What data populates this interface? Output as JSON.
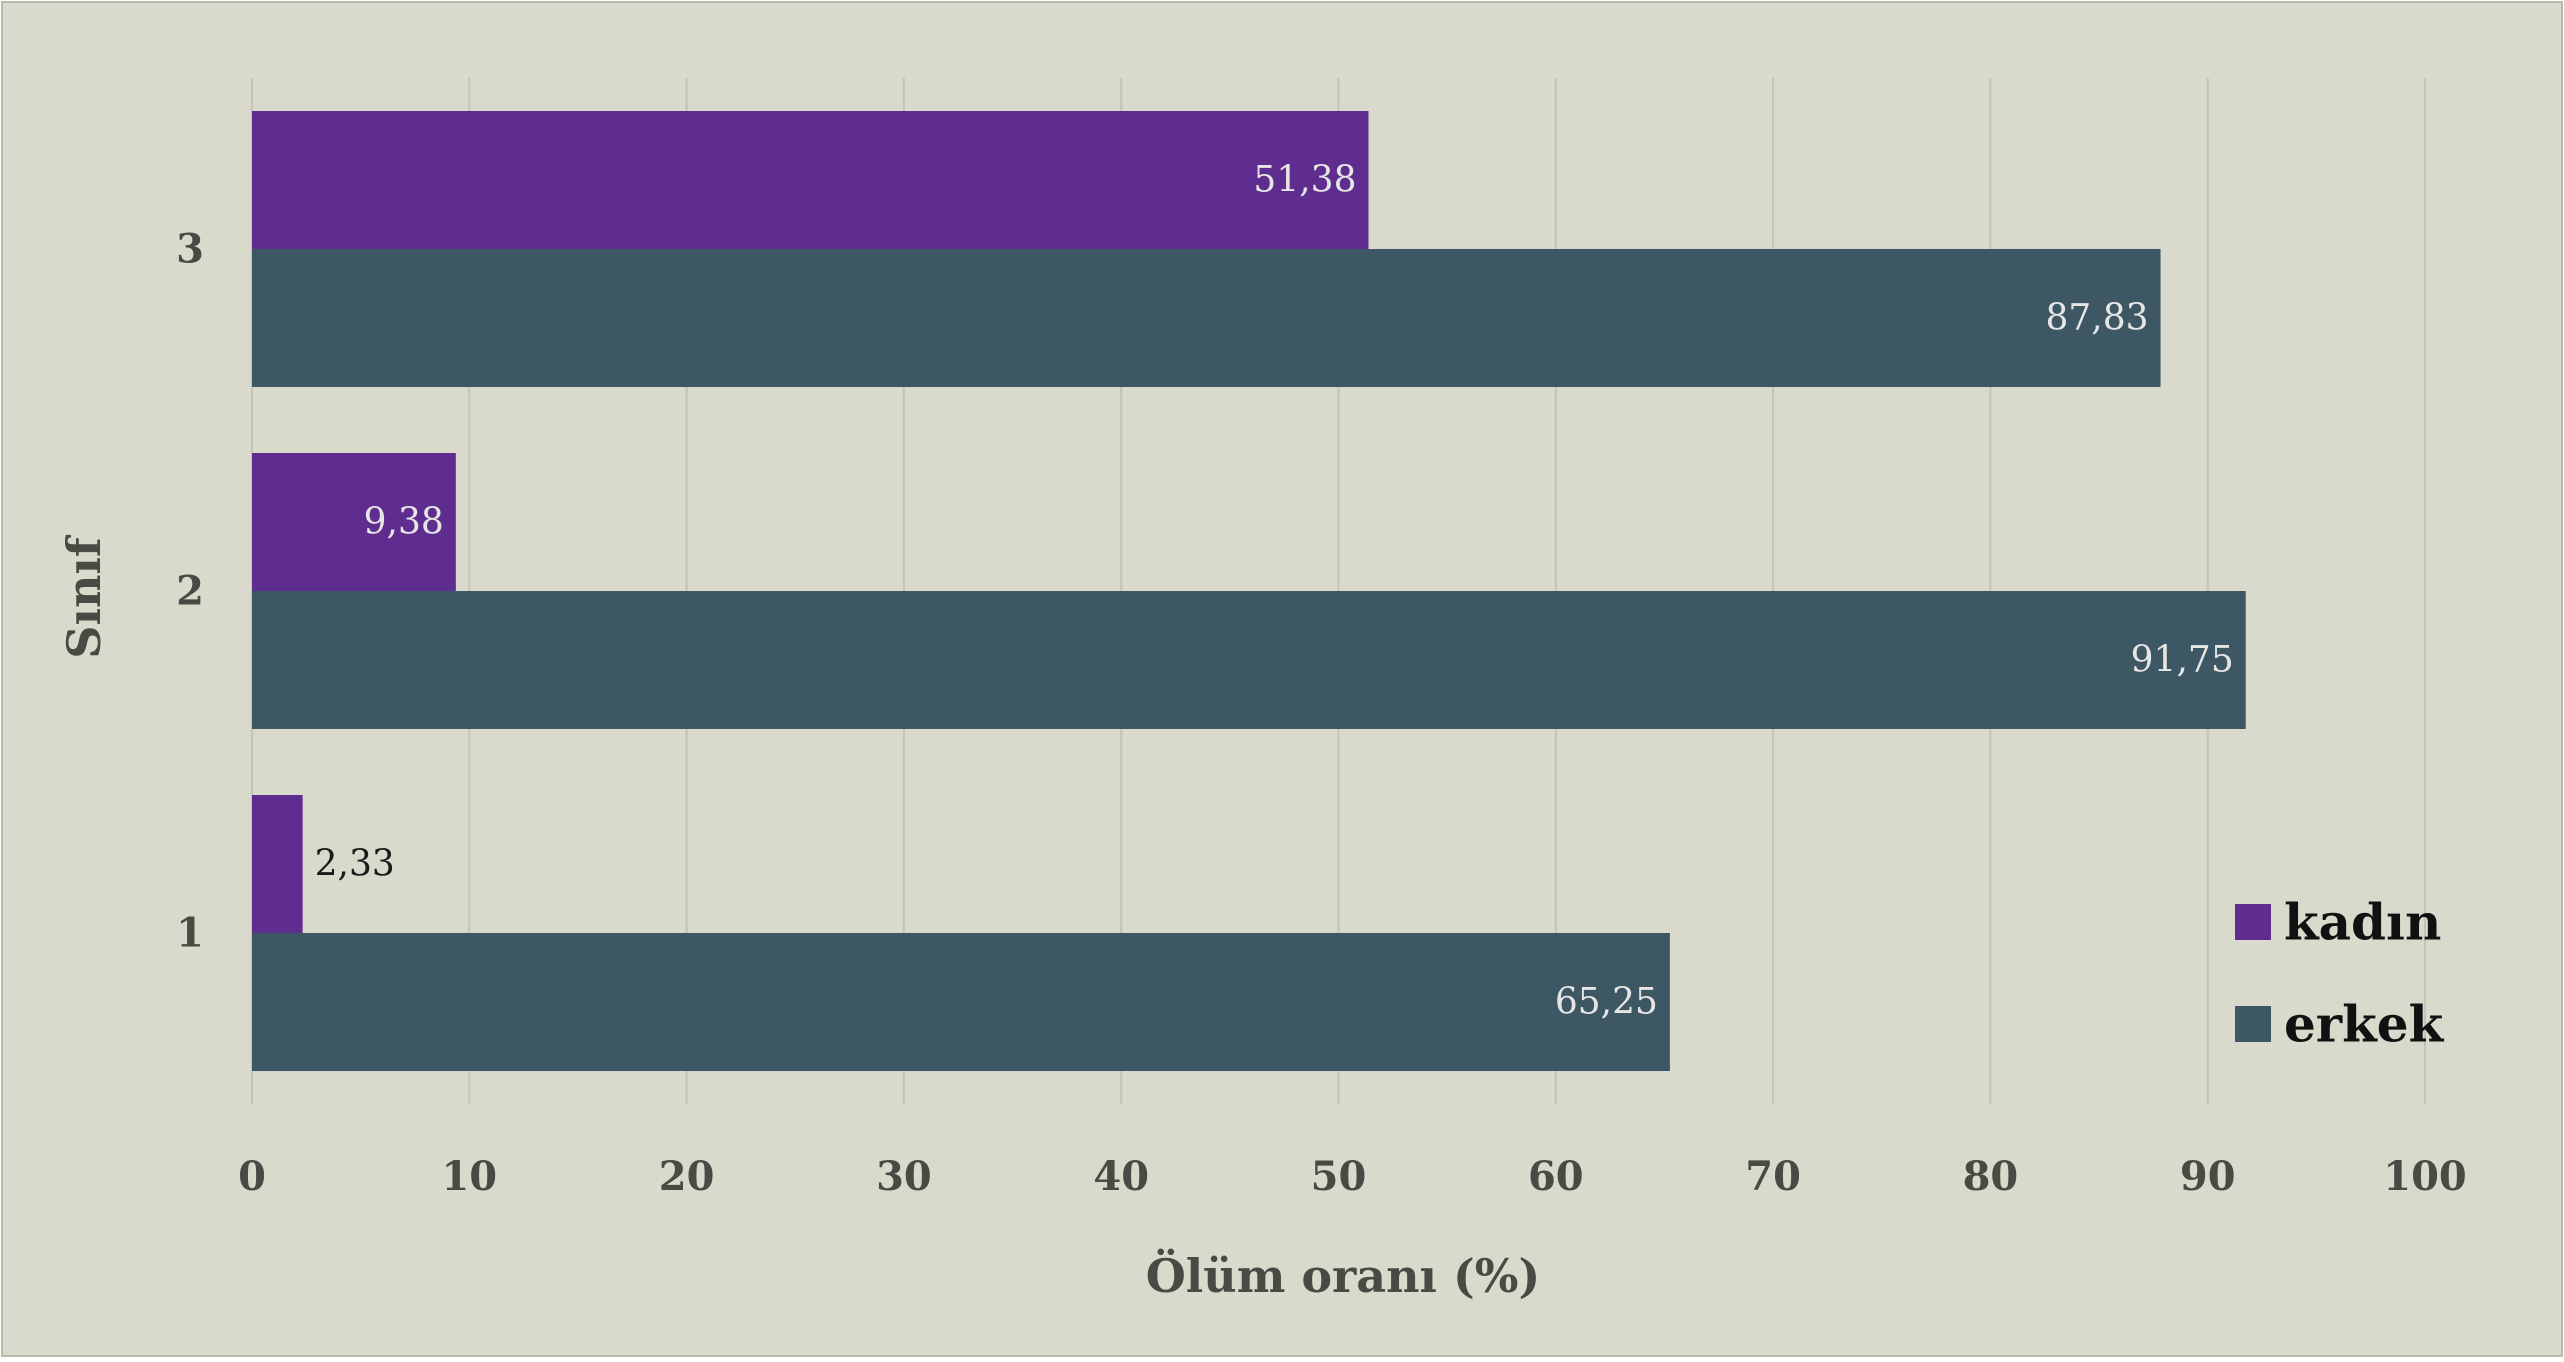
{
  "chart_data": {
    "type": "bar",
    "orientation": "horizontal",
    "categories": [
      "1",
      "2",
      "3"
    ],
    "series": [
      {
        "name": "kadın",
        "values": [
          2.33,
          9.38,
          51.38
        ],
        "labels": [
          "2,33",
          "9,38",
          "51,38"
        ],
        "color": "#5f2c8f"
      },
      {
        "name": "erkek",
        "values": [
          65.25,
          91.75,
          87.83
        ],
        "labels": [
          "65,25",
          "91,75",
          "87,83"
        ],
        "color": "#3d5864"
      }
    ],
    "xlabel": "Ölüm oranı (%)",
    "ylabel": "Sınıf",
    "xlim": [
      0,
      100
    ],
    "xticks": [
      "0",
      "10",
      "20",
      "30",
      "40",
      "50",
      "60",
      "70",
      "80",
      "90",
      "100"
    ],
    "grid": "vertical",
    "legend_position": "bottom-right",
    "background_color": "#d9d9cc",
    "gridline_color": "#c4c4b6"
  }
}
